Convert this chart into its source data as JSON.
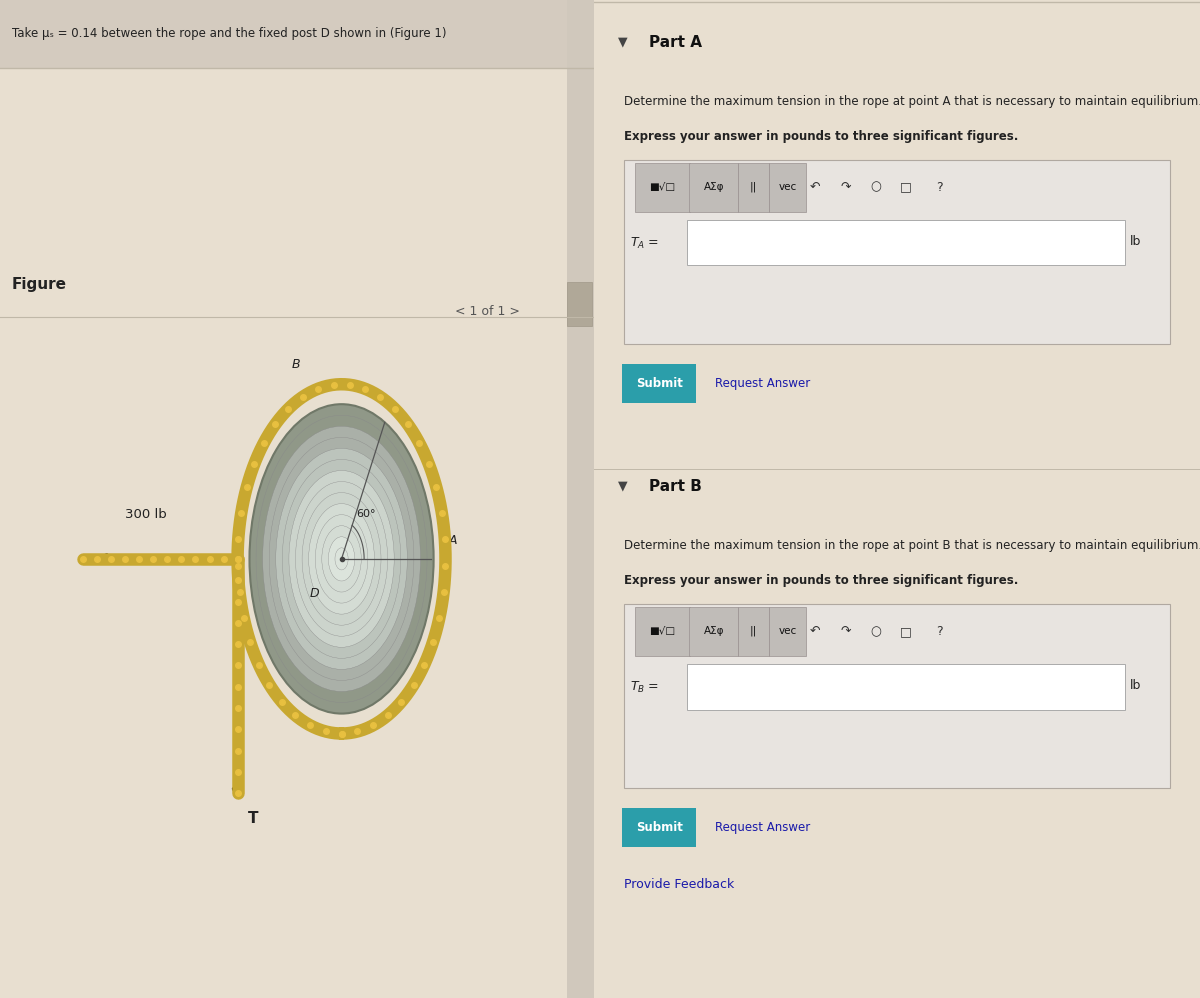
{
  "bg_color": "#e8dfd0",
  "left_panel_bg": "#e8dfd0",
  "right_panel_bg": "#ede8e0",
  "header_text": "Take μₛ = 0.14 between the rope and the fixed post D shown in (Figure 1)",
  "figure_label": "Figure",
  "nav_text": "< 1 of 1 >",
  "force_label": "300 lb",
  "tension_label": "T",
  "point_A": "A",
  "point_B": "B",
  "point_D": "D",
  "angle_label": "60°",
  "part_a_header": "Part A",
  "part_a_desc1": "Determine the maximum tension in the rope at point A that is necessary to maintain equilibrium.",
  "part_a_desc2": "Express your answer in pounds to three significant figures.",
  "part_a_unit": "lb",
  "part_b_header": "Part B",
  "part_b_desc1": "Determine the maximum tension in the rope at point B that is necessary to maintain equilibrium.",
  "part_b_desc2": "Express your answer in pounds to three significant figures.",
  "part_b_unit": "lb",
  "submit_color": "#2b9eaa",
  "submit_text": "Submit",
  "request_answer_text": "Request Answer",
  "provide_feedback_text": "Provide Feedback",
  "divider_color": "#c0b8a8",
  "rope_color": "#c8a830",
  "rope_bead_color": "#e8c040",
  "arrow_color": "#222222"
}
